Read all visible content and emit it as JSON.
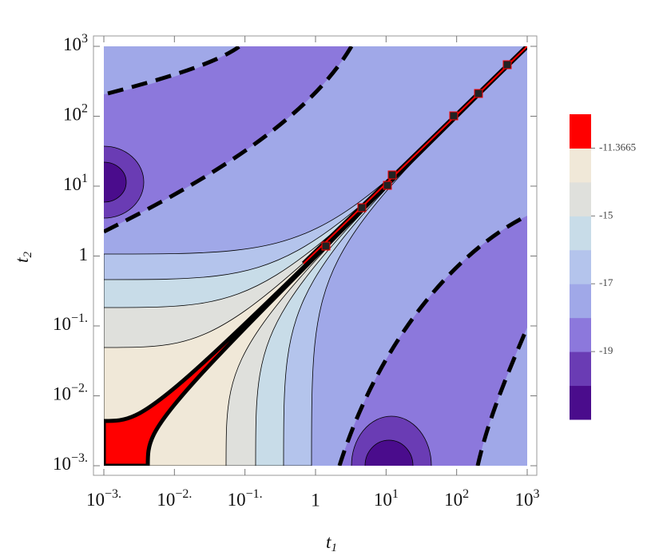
{
  "chart_data": {
    "type": "contour",
    "xlabel": "t",
    "xlabel_sub": "1",
    "ylabel": "t",
    "ylabel_sub": "2",
    "xscale": "log",
    "yscale": "log",
    "xlim": [
      0.001,
      1000
    ],
    "ylim": [
      0.001,
      1000
    ],
    "xticks": [
      {
        "value": 0.001,
        "label": "10",
        "sup": "−3."
      },
      {
        "value": 0.01,
        "label": "10",
        "sup": "−2."
      },
      {
        "value": 0.1,
        "label": "10",
        "sup": "−1."
      },
      1,
      {
        "value": 10,
        "label": "10",
        "sup": "1"
      },
      {
        "value": 100,
        "label": "10",
        "sup": "2"
      },
      {
        "value": 1000,
        "label": "10",
        "sup": "3"
      }
    ],
    "yticks": [
      {
        "value": 0.001,
        "label": "10",
        "sup": "−3."
      },
      {
        "value": 0.01,
        "label": "10",
        "sup": "−2."
      },
      {
        "value": 0.1,
        "label": "10",
        "sup": "−1."
      },
      1,
      {
        "value": 10,
        "label": "10",
        "sup": "1"
      },
      {
        "value": 100,
        "label": "10",
        "sup": "2"
      },
      {
        "value": 1000,
        "label": "10",
        "sup": "3"
      }
    ],
    "colorbar": {
      "boundaries": [
        -20,
        -19,
        -18,
        -17,
        -16,
        -15,
        -14,
        -11.3665
      ],
      "colors": [
        "#4a0c8c",
        "#6a3cb4",
        "#8c78dc",
        "#a0a8e8",
        "#b4c4ec",
        "#c8dce8",
        "#dfe0dc",
        "#f0e8d8",
        "#ff0000"
      ],
      "ticks": [
        -11.3665,
        -15,
        -17,
        -19
      ]
    }
  }
}
